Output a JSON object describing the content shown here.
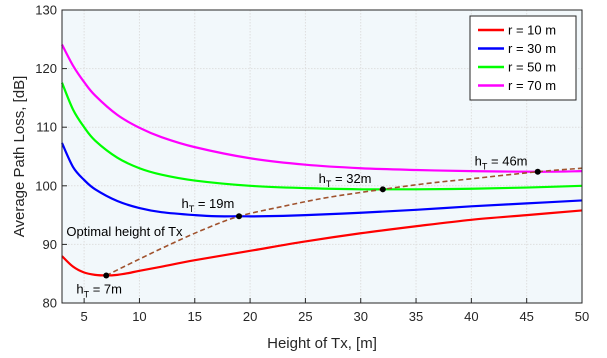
{
  "chart_data": {
    "type": "line",
    "xlabel": "Height of Tx, [m]",
    "ylabel": "Average Path Loss, [dB]",
    "xlim": [
      3,
      50
    ],
    "ylim": [
      80,
      130
    ],
    "xticks": [
      "5",
      "10",
      "15",
      "20",
      "25",
      "30",
      "35",
      "40",
      "45",
      "50"
    ],
    "yticks": [
      "80",
      "90",
      "100",
      "110",
      "120",
      "130"
    ],
    "grid": true,
    "legend_position": "top-right",
    "plot_background": "#f2f8fb",
    "series": [
      {
        "name": "r = 10 m",
        "color": "#ff0000",
        "x": [
          3,
          4,
          5,
          6,
          7,
          8,
          9,
          10,
          12,
          15,
          20,
          25,
          30,
          35,
          40,
          45,
          50
        ],
        "y": [
          88.0,
          86.2,
          85.2,
          84.8,
          84.7,
          84.8,
          85.1,
          85.5,
          86.2,
          87.3,
          88.9,
          90.5,
          91.9,
          93.1,
          94.2,
          95.0,
          95.8
        ]
      },
      {
        "name": "r = 30 m",
        "color": "#0000ff",
        "x": [
          3,
          4,
          5,
          6,
          8,
          10,
          12,
          15,
          17,
          19,
          21,
          25,
          30,
          35,
          40,
          45,
          50
        ],
        "y": [
          107.3,
          103.2,
          101.0,
          99.4,
          97.4,
          96.2,
          95.5,
          95.0,
          94.8,
          94.8,
          94.8,
          95.0,
          95.4,
          95.9,
          96.5,
          97.0,
          97.5
        ]
      },
      {
        "name": "r = 50 m",
        "color": "#00ff00",
        "x": [
          3,
          4,
          5,
          6,
          8,
          10,
          12,
          15,
          20,
          25,
          30,
          32,
          35,
          40,
          45,
          50
        ],
        "y": [
          117.6,
          113.0,
          110.0,
          107.7,
          104.8,
          103.0,
          101.9,
          100.9,
          100.0,
          99.6,
          99.4,
          99.4,
          99.4,
          99.5,
          99.7,
          100.0
        ]
      },
      {
        "name": "r = 70 m",
        "color": "#ff00ff",
        "x": [
          3,
          4,
          5,
          6,
          8,
          10,
          12,
          15,
          20,
          25,
          30,
          35,
          40,
          46,
          50
        ],
        "y": [
          124.1,
          120.5,
          117.7,
          115.4,
          112.1,
          109.9,
          108.3,
          106.6,
          104.7,
          103.6,
          103.0,
          102.7,
          102.5,
          102.4,
          102.5
        ]
      }
    ],
    "optimal_curve": {
      "color": "#a0522d",
      "style": "dashed",
      "x": [
        7,
        10,
        13,
        16,
        19,
        23,
        27,
        32,
        36,
        40,
        46,
        50
      ],
      "y": [
        84.7,
        87.5,
        90.2,
        92.7,
        94.8,
        96.5,
        98.0,
        99.4,
        100.4,
        101.2,
        102.4,
        103.0
      ]
    },
    "optimal_points": [
      {
        "x": 7,
        "y": 84.7,
        "label_main": "h",
        "label_sub": "T",
        "label_rest": " = 7m",
        "label_x": 4.3,
        "label_y": 81.6
      },
      {
        "x": 19,
        "y": 94.8,
        "label_main": "h",
        "label_sub": "T",
        "label_rest": " = 19m",
        "label_x": 13.8,
        "label_y": 96.2
      },
      {
        "x": 32,
        "y": 99.4,
        "label_main": "h",
        "label_sub": "T",
        "label_rest": " = 32m",
        "label_x": 26.2,
        "label_y": 100.5
      },
      {
        "x": 46,
        "y": 102.4,
        "label_main": "h",
        "label_sub": "T",
        "label_rest": " = 46m",
        "label_x": 40.3,
        "label_y": 103.5
      }
    ],
    "annotation": {
      "text": "Optimal height of Tx",
      "x": 3.4,
      "y": 91.4
    }
  }
}
